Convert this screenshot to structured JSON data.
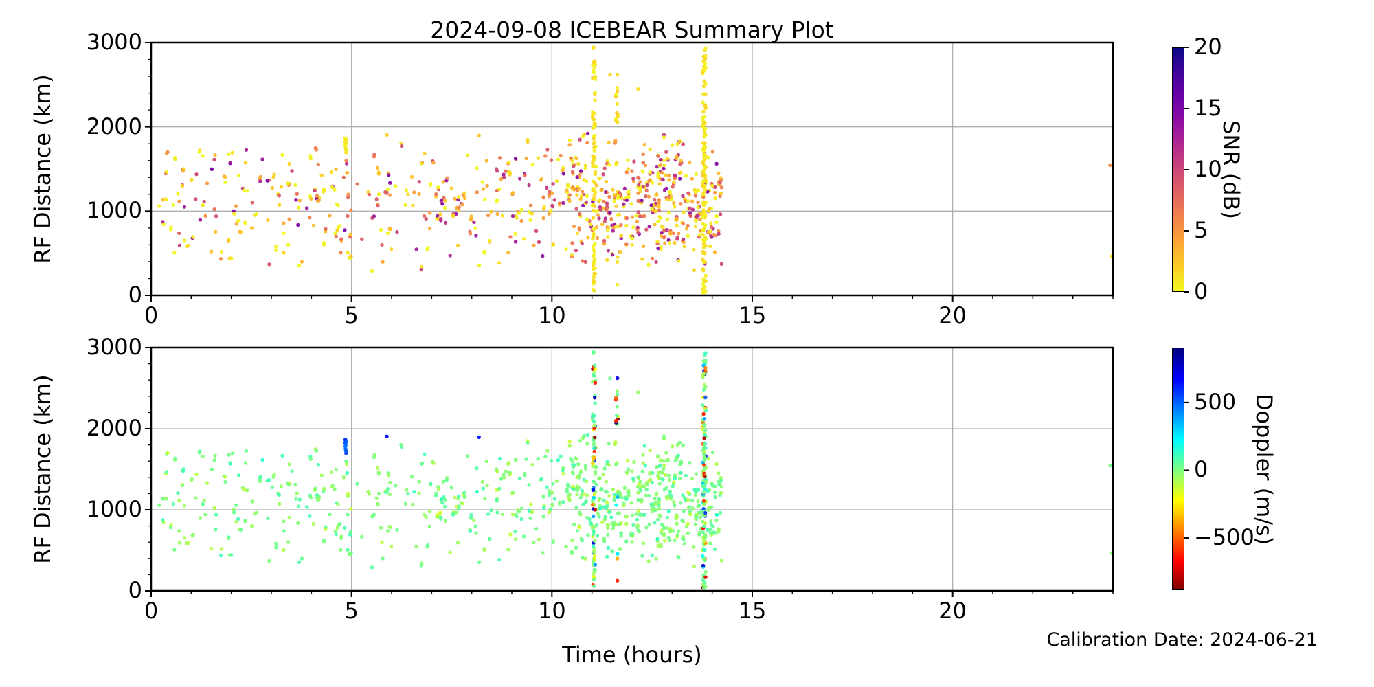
{
  "title": "2024-09-08 ICEBEAR Summary Plot",
  "annotation": {
    "calibration": "Calibration Date: 2024-06-21"
  },
  "chart_data": {
    "type": "scatter",
    "seed": 20240908,
    "x": {
      "label": "Time (hours)",
      "lim": [
        0,
        24
      ],
      "ticks": [
        {
          "v": 0,
          "label": "0"
        },
        {
          "v": 5,
          "label": "5"
        },
        {
          "v": 10,
          "label": "10"
        },
        {
          "v": 15,
          "label": "15"
        },
        {
          "v": 20,
          "label": "20"
        }
      ],
      "minor_step": 1
    },
    "panels": [
      {
        "name": "snr",
        "ylabel": "RF Distance (km)",
        "xlabel": "Time (hours)",
        "ylim": [
          0,
          3000
        ],
        "yticks": [
          {
            "v": 0,
            "label": "0"
          },
          {
            "v": 1000,
            "label": "1000"
          },
          {
            "v": 2000,
            "label": "2000"
          },
          {
            "v": 3000,
            "label": "3000"
          }
        ],
        "y_minor_step": 200,
        "grid": {
          "x": [
            5,
            10,
            15,
            20
          ],
          "y": [
            1000,
            2000
          ],
          "color": "#b0b0b0"
        },
        "color_by": "snr",
        "colorbar": {
          "label": "SNR (dB)",
          "vmin": 0,
          "vmax": 20,
          "ticks": [
            {
              "v": 20,
              "label": "20"
            },
            {
              "v": 15,
              "label": "15"
            },
            {
              "v": 10,
              "label": "10"
            },
            {
              "v": 5,
              "label": "5"
            },
            {
              "v": 0,
              "label": "0"
            }
          ],
          "stops": [
            {
              "v": 0,
              "c": "#f0f921"
            },
            {
              "v": 2,
              "c": "#fcce25"
            },
            {
              "v": 4,
              "c": "#fca636"
            },
            {
              "v": 6,
              "c": "#f2844b"
            },
            {
              "v": 8,
              "c": "#e16462"
            },
            {
              "v": 10,
              "c": "#cc4778"
            },
            {
              "v": 12,
              "c": "#b12a90"
            },
            {
              "v": 14,
              "c": "#8f0da4"
            },
            {
              "v": 16,
              "c": "#6a00a8"
            },
            {
              "v": 18,
              "c": "#41049d"
            },
            {
              "v": 20,
              "c": "#0d0887"
            }
          ]
        }
      },
      {
        "name": "doppler",
        "ylabel": "RF Distance (km)",
        "xlabel": "Time (hours)",
        "ylim": [
          0,
          3000
        ],
        "yticks": [
          {
            "v": 0,
            "label": "0"
          },
          {
            "v": 1000,
            "label": "1000"
          },
          {
            "v": 2000,
            "label": "2000"
          },
          {
            "v": 3000,
            "label": "3000"
          }
        ],
        "y_minor_step": 200,
        "grid": {
          "x": [
            5,
            10,
            15,
            20
          ],
          "y": [
            1000,
            2000
          ],
          "color": "#b0b0b0"
        },
        "color_by": "dop",
        "colorbar": {
          "label": "Doppler (m/s)",
          "vmin": -885,
          "vmax": 905,
          "ticks": [
            {
              "v": 500,
              "label": "500"
            },
            {
              "v": 0,
              "label": "0"
            },
            {
              "v": -500,
              "label": "−500"
            }
          ],
          "stops": [
            {
              "v": -900,
              "c": "#7f0000"
            },
            {
              "v": -675,
              "c": "#ff0000"
            },
            {
              "v": -225,
              "c": "#ffff00"
            },
            {
              "v": 225,
              "c": "#00ffff"
            },
            {
              "v": 675,
              "c": "#0000ff"
            },
            {
              "v": 900,
              "c": "#00007f"
            }
          ]
        }
      }
    ],
    "points_spec": {
      "dot_radius": 2.7,
      "sibling_prob": 0.3,
      "clusters": [
        {
          "kind": "cloud",
          "n": 300,
          "x_min": 0.05,
          "x_max": 10.4,
          "x_bias": 0.85,
          "y_mid": 1100,
          "y_half": 840,
          "y_min": 140,
          "y_max": 1960,
          "snr_max": 15,
          "snr_pow": 2.2,
          "dop_spread": 120
        },
        {
          "kind": "cloud",
          "n": 365,
          "x_min": 10.4,
          "x_max": 14.25,
          "x_bias": 1.0,
          "y_mid": 1120,
          "y_half": 840,
          "y_min": 180,
          "y_max": 1980,
          "snr_max": 15,
          "snr_pow": 2.2,
          "dop_spread": 120
        },
        {
          "kind": "streak",
          "n": 92,
          "x": 11.05,
          "x_jit": 0.07,
          "y_min": 30,
          "y_max": 2950,
          "snr_max": 1.8,
          "dop_mix": 0.45
        },
        {
          "kind": "streak",
          "n": 125,
          "x": 13.8,
          "x_jit": 0.08,
          "y_min": 30,
          "y_max": 2950,
          "snr_max": 1.8,
          "dop_mix": 0.45
        },
        {
          "kind": "streak",
          "n": 12,
          "x": 11.62,
          "x_jit": 0.05,
          "y_min": 2050,
          "y_max": 2780,
          "snr_max": 2.5,
          "dop_mix": 0.6
        },
        {
          "kind": "streak",
          "n": 7,
          "x": 11.62,
          "x_jit": 0.05,
          "y_min": 100,
          "y_max": 2000,
          "snr_max": 2.5,
          "dop_mix": 0.75
        },
        {
          "kind": "streak",
          "n": 13,
          "x": 4.85,
          "x_jit": 0.035,
          "y_min": 1670,
          "y_max": 1885,
          "snr_max": 1.5,
          "dop_mix": 0,
          "dop_range": [
            430,
            620
          ]
        },
        {
          "kind": "explicit",
          "pts": [
            [
              5.88,
              1905,
              2.0,
              660
            ],
            [
              8.18,
              1895,
              2.5,
              640
            ],
            [
              12.15,
              2450,
              1.2,
              -40
            ],
            [
              11.45,
              2620,
              1.5,
              30
            ],
            [
              23.93,
              1545,
              5.5,
              20
            ],
            [
              23.97,
              465,
              0.9,
              -15
            ]
          ]
        }
      ]
    }
  }
}
